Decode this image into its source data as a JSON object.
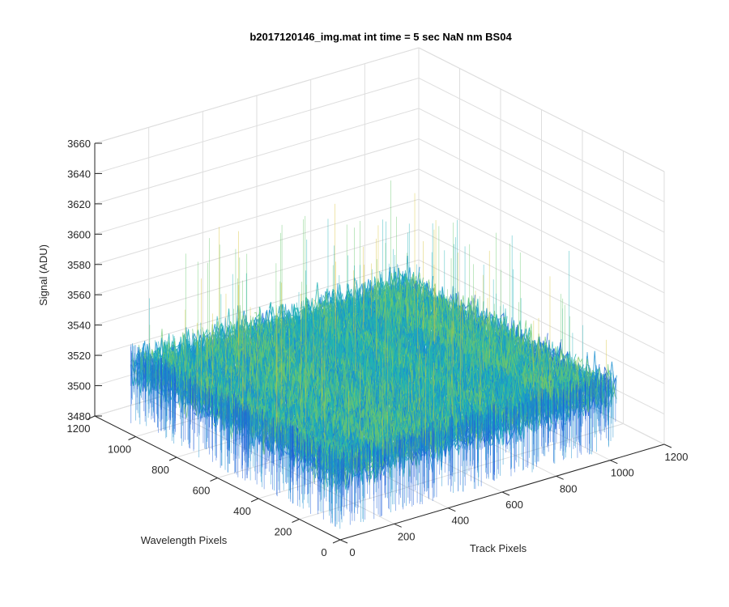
{
  "chart_data": {
    "type": "surface",
    "title": "b2017120146_img.mat int time = 5 sec  NaN nm BS04",
    "xlabel": "Track Pixels",
    "ylabel": "Wavelength Pixels",
    "zlabel": "Signal (ADU)",
    "xlim": [
      0,
      1200
    ],
    "ylim": [
      0,
      1200
    ],
    "zlim": [
      3480,
      3660
    ],
    "x_ticks": [
      0,
      200,
      400,
      600,
      800,
      1000,
      1200
    ],
    "y_ticks": [
      0,
      200,
      400,
      600,
      800,
      1000,
      1200
    ],
    "z_ticks": [
      3480,
      3500,
      3520,
      3540,
      3560,
      3580,
      3600,
      3620,
      3640,
      3660
    ],
    "grid": true,
    "surface": {
      "x_range": [
        0,
        1024
      ],
      "y_range": [
        0,
        1024
      ],
      "mean_signal": 3525,
      "noise_range": [
        3490,
        3600
      ],
      "colormap": "parula",
      "colors": [
        "#1f5fd8",
        "#1a8fd0",
        "#20b2b5",
        "#6ac86e",
        "#d9c53a"
      ]
    }
  }
}
